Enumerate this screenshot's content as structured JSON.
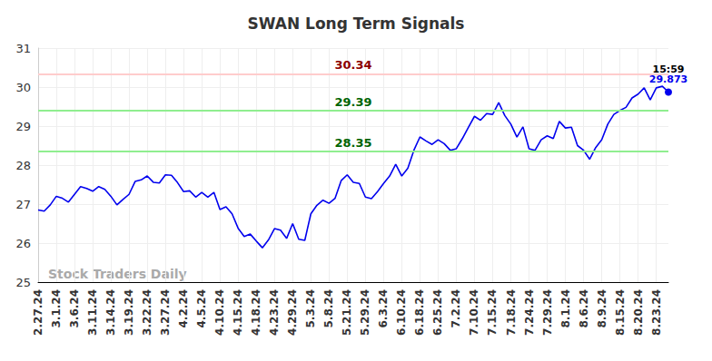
{
  "chart_data": {
    "type": "line",
    "title": "SWAN Long Term Signals",
    "color": "#0000ee",
    "grid": true,
    "ylim": [
      25,
      31
    ],
    "yticks": [
      25,
      26,
      27,
      28,
      29,
      30,
      31
    ],
    "categories": [
      "2.27.24",
      null,
      null,
      "3.1.24",
      null,
      null,
      "3.6.24",
      null,
      null,
      "3.11.24",
      null,
      null,
      "3.14.24",
      null,
      null,
      "3.19.24",
      null,
      null,
      "3.22.24",
      null,
      null,
      "3.27.24",
      null,
      null,
      "4.2.24",
      null,
      null,
      "4.5.24",
      null,
      null,
      "4.10.24",
      null,
      null,
      "4.15.24",
      null,
      null,
      "4.18.24",
      null,
      null,
      "4.23.24",
      null,
      null,
      "4.29.24",
      null,
      null,
      "5.3.24",
      null,
      null,
      "5.8.24",
      null,
      null,
      "5.21.24",
      null,
      null,
      "5.29.24",
      null,
      null,
      "6.3.24",
      null,
      null,
      "6.10.24",
      null,
      null,
      "6.18.24",
      null,
      null,
      "6.25.24",
      null,
      null,
      "7.2.24",
      null,
      null,
      "7.10.24",
      null,
      null,
      "7.15.24",
      null,
      null,
      "7.18.24",
      null,
      null,
      "7.24.24",
      null,
      null,
      "7.29.24",
      null,
      null,
      "8.1.24",
      null,
      null,
      "8.6.24",
      null,
      null,
      "8.9.24",
      null,
      null,
      "8.15.24",
      null,
      null,
      "8.20.24",
      null,
      null,
      "8.23.24",
      null,
      null
    ],
    "values": [
      26.85,
      26.82,
      26.98,
      27.2,
      27.15,
      27.05,
      27.25,
      27.45,
      27.4,
      27.33,
      27.45,
      27.38,
      27.2,
      26.98,
      27.12,
      27.25,
      27.58,
      27.62,
      27.72,
      27.56,
      27.54,
      27.75,
      27.74,
      27.55,
      27.32,
      27.34,
      27.18,
      27.3,
      27.18,
      27.3,
      26.86,
      26.93,
      26.75,
      26.38,
      26.17,
      26.23,
      26.05,
      25.88,
      26.08,
      26.37,
      26.33,
      26.12,
      26.5,
      26.1,
      26.07,
      26.75,
      26.97,
      27.1,
      27.02,
      27.15,
      27.6,
      27.75,
      27.56,
      27.53,
      27.18,
      27.14,
      27.32,
      27.53,
      27.72,
      28.02,
      27.72,
      27.92,
      28.38,
      28.72,
      28.62,
      28.53,
      28.65,
      28.55,
      28.38,
      28.42,
      28.68,
      28.97,
      29.25,
      29.15,
      29.32,
      29.3,
      29.6,
      29.27,
      29.05,
      28.72,
      28.98,
      28.42,
      28.38,
      28.65,
      28.75,
      28.68,
      29.12,
      28.95,
      28.97,
      28.5,
      28.38,
      28.15,
      28.45,
      28.65,
      29.05,
      29.3,
      29.4,
      29.48,
      29.72,
      29.82,
      29.98,
      29.67,
      29.98,
      30.02,
      29.873
    ],
    "reference_lines": [
      {
        "value": 30.34,
        "color": "#ffcccc",
        "label_color": "#8b0000"
      },
      {
        "value": 29.39,
        "color": "#90ee90",
        "label_color": "#006400"
      },
      {
        "value": 28.35,
        "color": "#90ee90",
        "label_color": "#006400"
      }
    ],
    "last_point": {
      "time": "15:59",
      "value": 29.873
    },
    "watermark": "Stock Traders Daily"
  }
}
